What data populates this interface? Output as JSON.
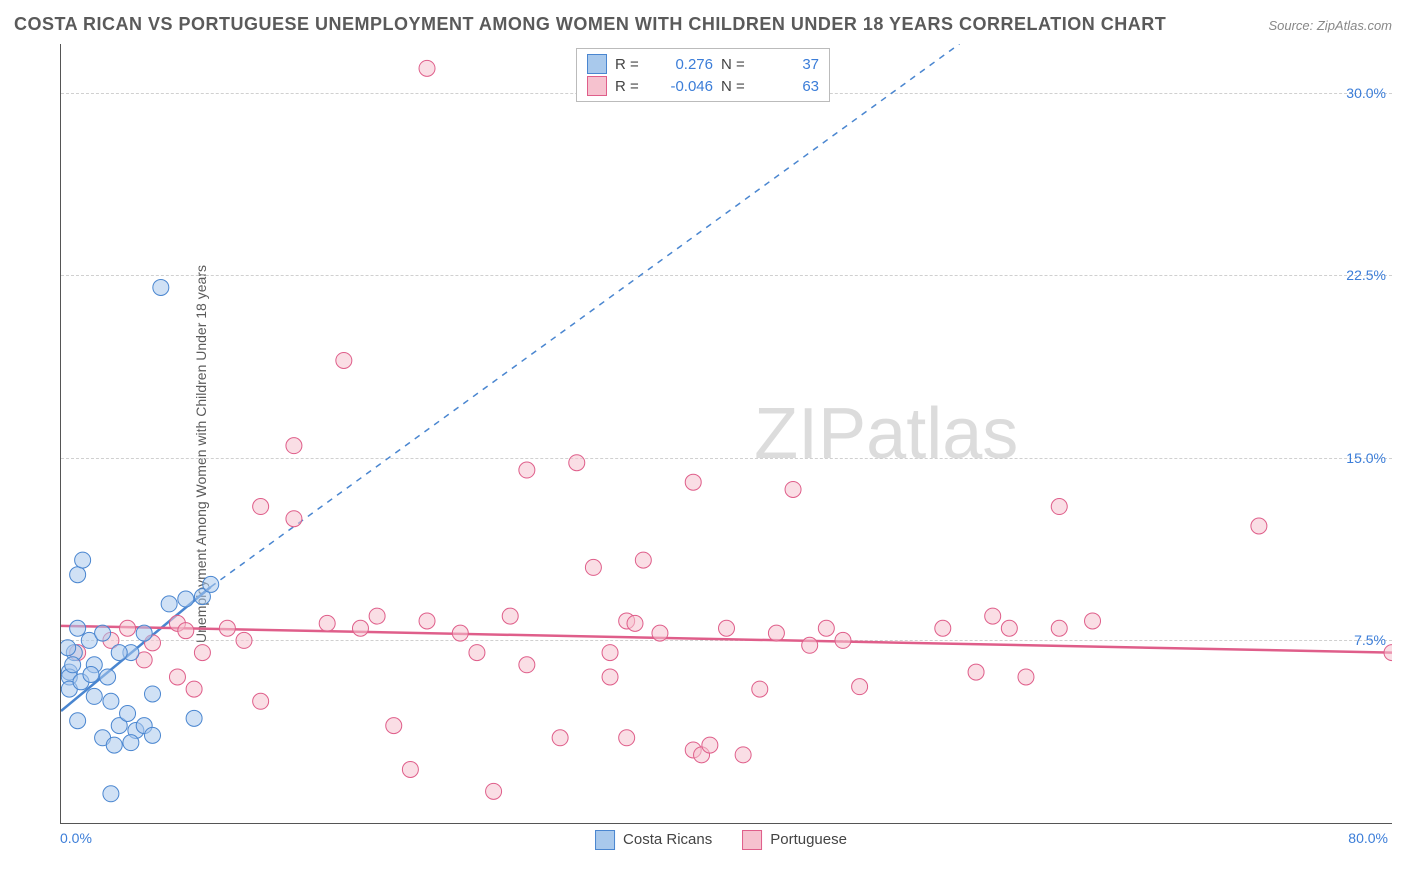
{
  "title": "COSTA RICAN VS PORTUGUESE UNEMPLOYMENT AMONG WOMEN WITH CHILDREN UNDER 18 YEARS CORRELATION CHART",
  "source": "Source: ZipAtlas.com",
  "watermark_a": "ZIP",
  "watermark_b": "atlas",
  "ylabel": "Unemployment Among Women with Children Under 18 years",
  "chart": {
    "type": "scatter",
    "background_color": "#ffffff",
    "grid_color": "#d0d0d0",
    "axis_color": "#555555",
    "text_color": "#5a5a5a",
    "value_color": "#3b7dd8",
    "xlim": [
      0,
      80
    ],
    "ylim": [
      0,
      32
    ],
    "y_ticks": [
      7.5,
      15.0,
      22.5,
      30.0
    ],
    "y_tick_labels": [
      "7.5%",
      "15.0%",
      "22.5%",
      "30.0%"
    ],
    "x_tick_labels": {
      "min": "0.0%",
      "max": "80.0%"
    },
    "marker_radius": 8,
    "marker_opacity": 0.55,
    "line_width_solid": 2.5,
    "line_width_dash": 1.5,
    "series": [
      {
        "name": "Costa Ricans",
        "color_fill": "#a9c9ec",
        "color_stroke": "#4a86d0",
        "r_label": "R =",
        "r_value": "0.276",
        "n_label": "N =",
        "n_value": "37",
        "trend_solid": {
          "x1": 0,
          "y1": 4.6,
          "x2": 9,
          "y2": 9.7
        },
        "trend_dash": {
          "x1": 9,
          "y1": 9.7,
          "x2": 54,
          "y2": 32
        },
        "points": [
          [
            0.5,
            6.2
          ],
          [
            0.5,
            6.0
          ],
          [
            0.8,
            7.0
          ],
          [
            0.5,
            5.5
          ],
          [
            1.2,
            5.8
          ],
          [
            0.4,
            7.2
          ],
          [
            1.0,
            8.0
          ],
          [
            1.7,
            7.5
          ],
          [
            2.0,
            6.5
          ],
          [
            2.5,
            7.8
          ],
          [
            1.0,
            10.2
          ],
          [
            1.3,
            10.8
          ],
          [
            1.0,
            4.2
          ],
          [
            2.0,
            5.2
          ],
          [
            3.0,
            5.0
          ],
          [
            3.5,
            4.0
          ],
          [
            4.0,
            4.5
          ],
          [
            4.5,
            3.8
          ],
          [
            2.5,
            3.5
          ],
          [
            3.2,
            3.2
          ],
          [
            4.2,
            3.3
          ],
          [
            5.0,
            4.0
          ],
          [
            5.5,
            3.6
          ],
          [
            5.5,
            5.3
          ],
          [
            4.2,
            7.0
          ],
          [
            6.5,
            9.0
          ],
          [
            7.5,
            9.2
          ],
          [
            8.5,
            9.3
          ],
          [
            9.0,
            9.8
          ],
          [
            8.0,
            4.3
          ],
          [
            3.0,
            1.2
          ],
          [
            6.0,
            22.0
          ],
          [
            2.8,
            6.0
          ],
          [
            3.5,
            7.0
          ],
          [
            1.8,
            6.1
          ],
          [
            0.7,
            6.5
          ],
          [
            5.0,
            7.8
          ]
        ]
      },
      {
        "name": "Portuguese",
        "color_fill": "#f6c2cf",
        "color_stroke": "#df5e8a",
        "r_label": "R =",
        "r_value": "-0.046",
        "n_label": "N =",
        "n_value": "63",
        "trend_solid": {
          "x1": 0,
          "y1": 8.1,
          "x2": 80,
          "y2": 7.0
        },
        "points": [
          [
            1.0,
            7.0
          ],
          [
            3.0,
            7.5
          ],
          [
            4.0,
            8.0
          ],
          [
            5.0,
            6.7
          ],
          [
            5.5,
            7.4
          ],
          [
            7.0,
            8.2
          ],
          [
            7.0,
            6.0
          ],
          [
            8.0,
            5.5
          ],
          [
            7.5,
            7.9
          ],
          [
            8.5,
            7.0
          ],
          [
            10.0,
            8.0
          ],
          [
            11.0,
            7.5
          ],
          [
            12.0,
            5.0
          ],
          [
            12.0,
            13.0
          ],
          [
            14.0,
            15.5
          ],
          [
            14.0,
            12.5
          ],
          [
            16.0,
            8.2
          ],
          [
            17.0,
            19.0
          ],
          [
            18.0,
            8.0
          ],
          [
            19.0,
            8.5
          ],
          [
            20.0,
            4.0
          ],
          [
            21.0,
            2.2
          ],
          [
            22.0,
            31.0
          ],
          [
            22.0,
            8.3
          ],
          [
            24.0,
            7.8
          ],
          [
            25.0,
            7.0
          ],
          [
            26.0,
            1.3
          ],
          [
            27.0,
            8.5
          ],
          [
            28.0,
            6.5
          ],
          [
            28.0,
            14.5
          ],
          [
            30.0,
            3.5
          ],
          [
            31.0,
            14.8
          ],
          [
            32.0,
            10.5
          ],
          [
            33.0,
            7.0
          ],
          [
            33.0,
            6.0
          ],
          [
            34.0,
            3.5
          ],
          [
            34.0,
            8.3
          ],
          [
            34.5,
            8.2
          ],
          [
            35.0,
            10.8
          ],
          [
            36.0,
            7.8
          ],
          [
            38.0,
            14.0
          ],
          [
            38.0,
            3.0
          ],
          [
            38.5,
            2.8
          ],
          [
            39.0,
            3.2
          ],
          [
            40.0,
            8.0
          ],
          [
            41.0,
            2.8
          ],
          [
            42.0,
            5.5
          ],
          [
            43.0,
            7.8
          ],
          [
            44.0,
            13.7
          ],
          [
            45.0,
            7.3
          ],
          [
            46.0,
            8.0
          ],
          [
            47.0,
            7.5
          ],
          [
            48.0,
            5.6
          ],
          [
            53.0,
            8.0
          ],
          [
            55.0,
            6.2
          ],
          [
            56.0,
            8.5
          ],
          [
            57.0,
            8.0
          ],
          [
            58.0,
            6.0
          ],
          [
            60.0,
            8.0
          ],
          [
            60.0,
            13.0
          ],
          [
            62.0,
            8.3
          ],
          [
            72.0,
            12.2
          ],
          [
            80.0,
            7.0
          ]
        ]
      }
    ]
  }
}
